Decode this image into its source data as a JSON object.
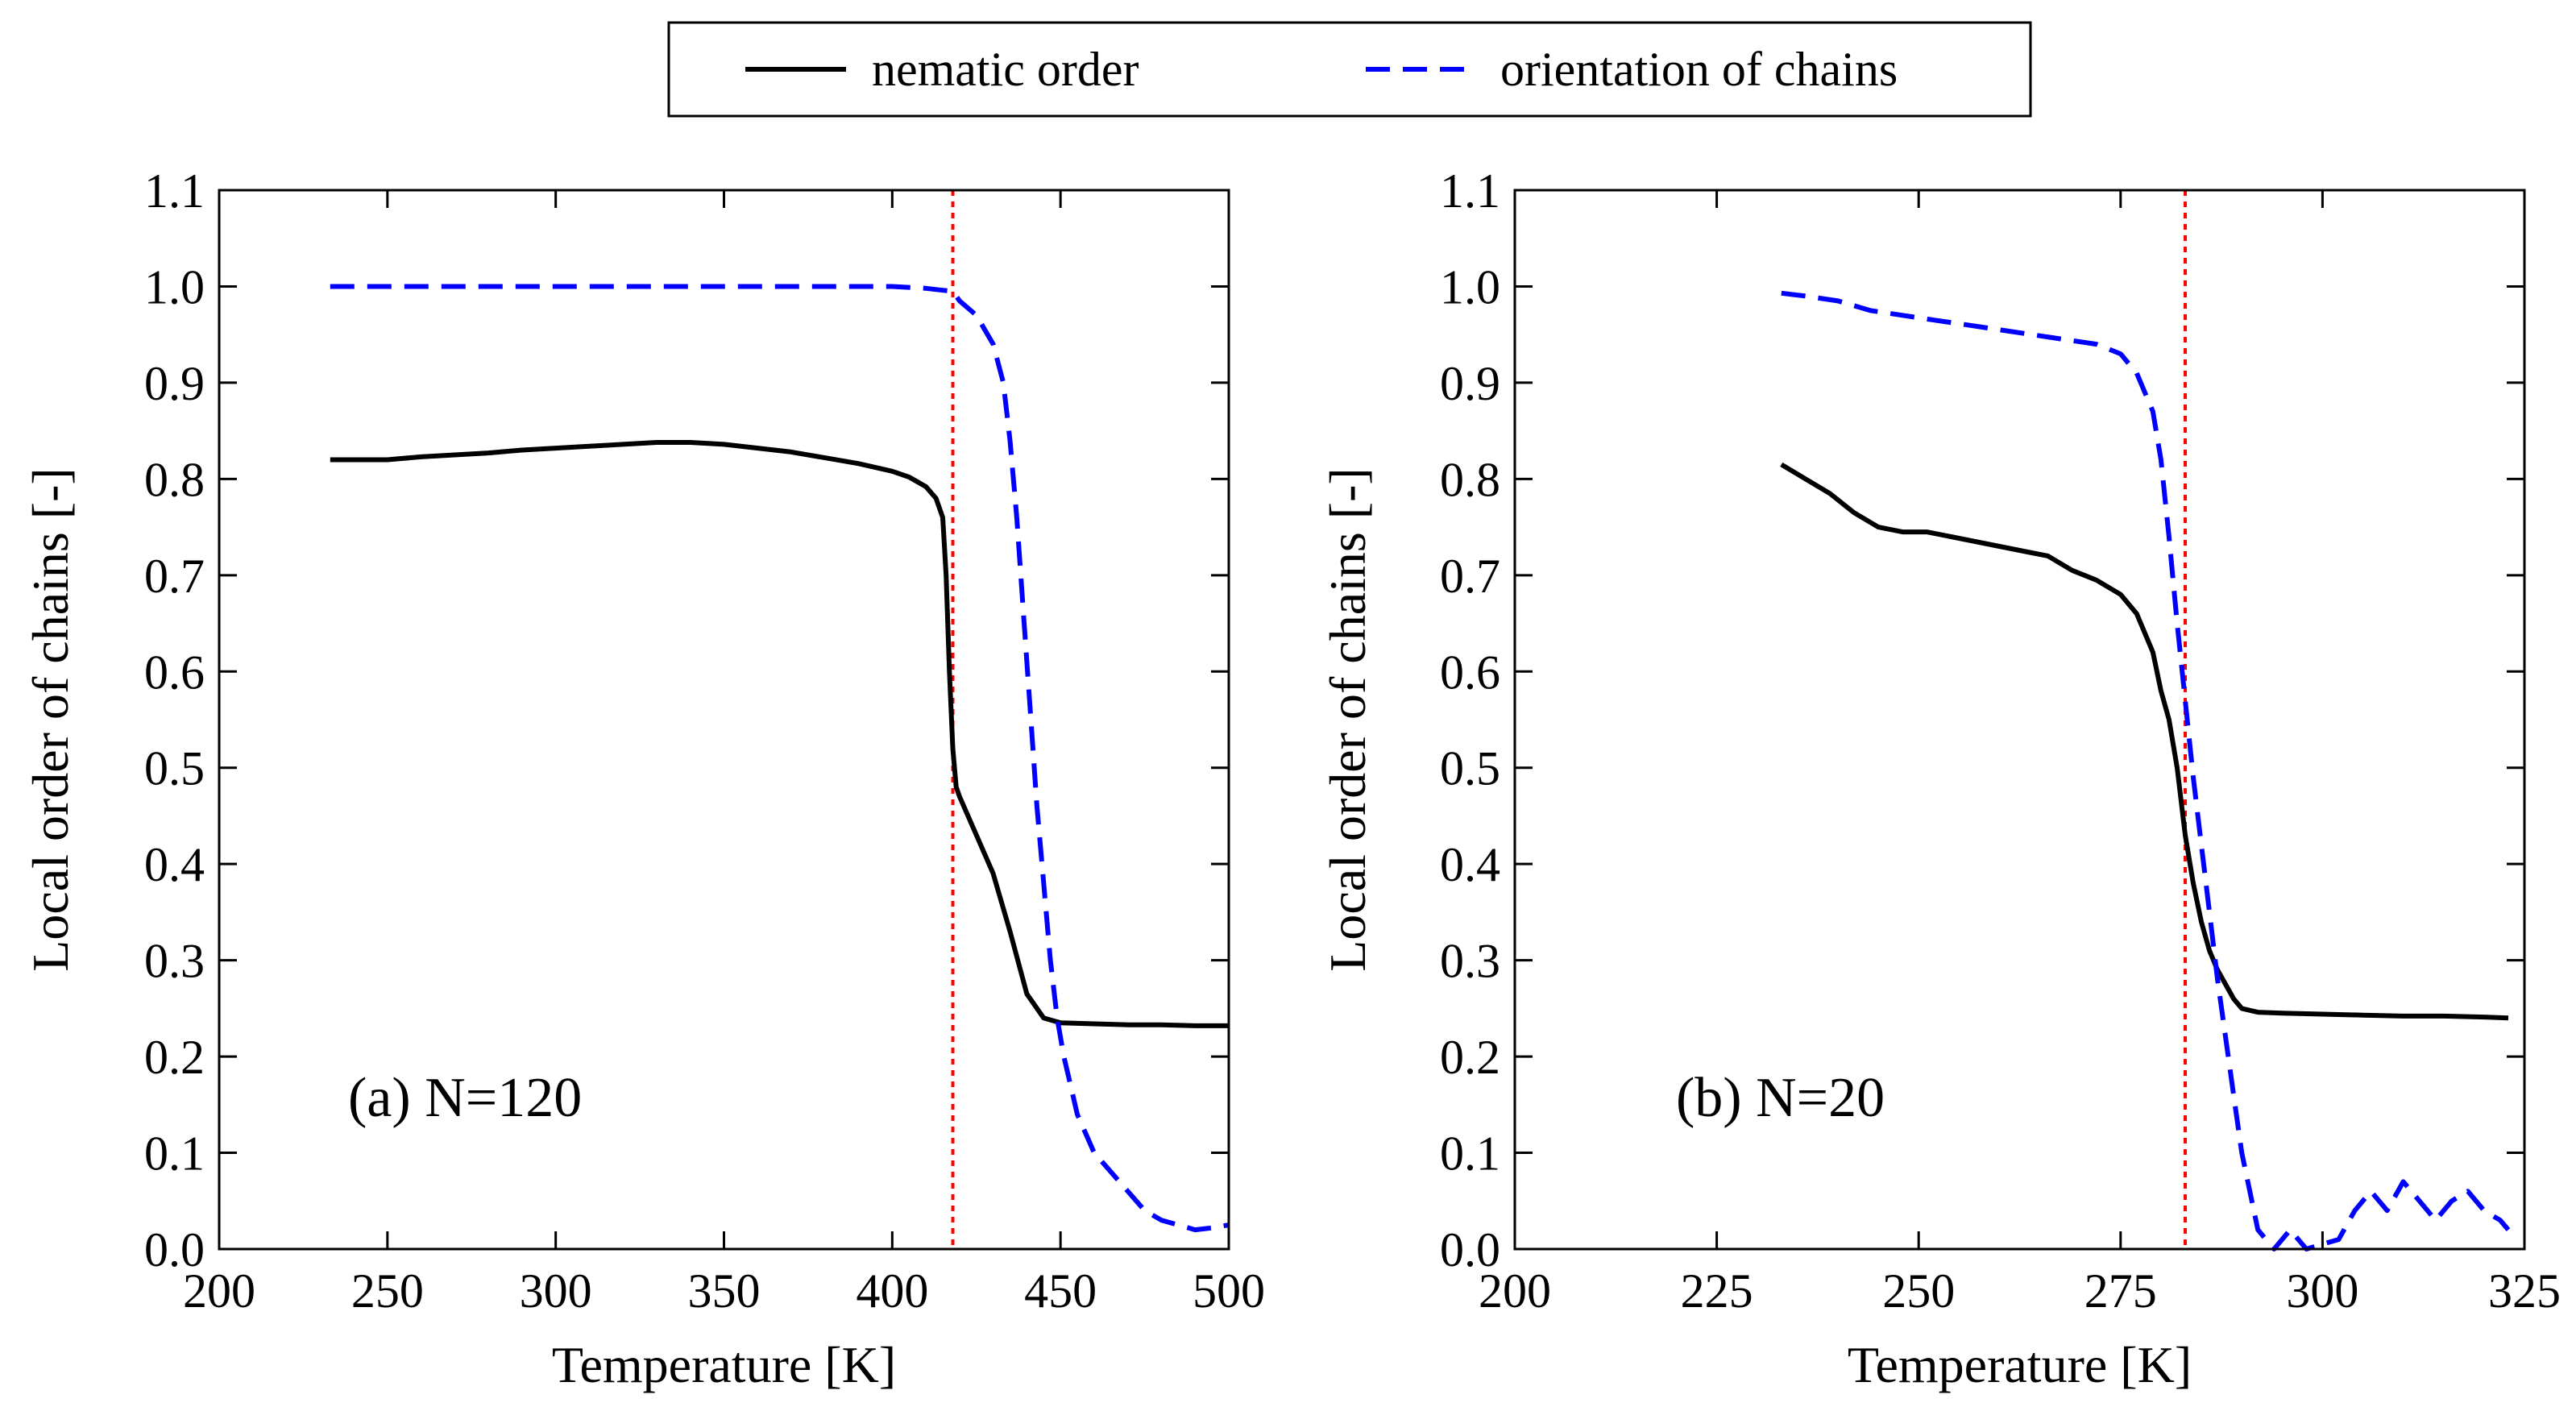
{
  "legend": {
    "entries": [
      {
        "label": "nematic order",
        "color": "#000000",
        "style": "solid"
      },
      {
        "label": "orientation of chains",
        "color": "#0000ff",
        "style": "dashed"
      }
    ]
  },
  "colors": {
    "nematic": "#000000",
    "orientation": "#0000ff",
    "transition": "#ff0000"
  },
  "chart_data": [
    {
      "type": "line",
      "panel_label": "(a)  N=120",
      "xlabel": "Temperature [K]",
      "ylabel": "Local order of chains [-]",
      "xlim": [
        200,
        500
      ],
      "ylim": [
        0.0,
        1.1
      ],
      "xticks": [
        "200",
        "250",
        "300",
        "350",
        "400",
        "450",
        "500"
      ],
      "yticks": [
        "0.0",
        "0.1",
        "0.2",
        "0.3",
        "0.4",
        "0.5",
        "0.6",
        "0.7",
        "0.8",
        "0.9",
        "1.0",
        "1.1"
      ],
      "transition_x": 418,
      "series": [
        {
          "name": "nematic order",
          "x": [
            233,
            240,
            250,
            260,
            270,
            280,
            290,
            300,
            310,
            320,
            330,
            340,
            350,
            360,
            370,
            380,
            390,
            400,
            405,
            410,
            413,
            415,
            416,
            417,
            418,
            419,
            420,
            425,
            430,
            435,
            440,
            445,
            450,
            460,
            470,
            480,
            490,
            500
          ],
          "y": [
            0.82,
            0.82,
            0.82,
            0.823,
            0.825,
            0.827,
            0.83,
            0.832,
            0.834,
            0.836,
            0.838,
            0.838,
            0.836,
            0.832,
            0.828,
            0.822,
            0.816,
            0.808,
            0.802,
            0.792,
            0.78,
            0.76,
            0.7,
            0.6,
            0.52,
            0.48,
            0.47,
            0.43,
            0.39,
            0.33,
            0.265,
            0.24,
            0.235,
            0.234,
            0.233,
            0.233,
            0.232,
            0.232
          ]
        },
        {
          "name": "orientation of chains",
          "x": [
            233,
            250,
            300,
            350,
            380,
            400,
            410,
            415,
            418,
            420,
            425,
            430,
            433,
            435,
            437,
            439,
            441,
            443,
            445,
            447,
            449,
            451,
            453,
            455,
            460,
            465,
            470,
            475,
            480,
            485,
            490,
            495,
            500
          ],
          "y": [
            1.0,
            1.0,
            1.0,
            1.0,
            1.0,
            1.0,
            0.998,
            0.996,
            0.995,
            0.985,
            0.97,
            0.94,
            0.9,
            0.84,
            0.76,
            0.66,
            0.56,
            0.46,
            0.38,
            0.3,
            0.24,
            0.2,
            0.17,
            0.14,
            0.1,
            0.08,
            0.06,
            0.04,
            0.03,
            0.025,
            0.02,
            0.022,
            0.025
          ]
        }
      ]
    },
    {
      "type": "line",
      "panel_label": "(b)  N=20",
      "xlabel": "Temperature [K]",
      "ylabel": "Local order of chains [-]",
      "xlim": [
        200,
        325
      ],
      "ylim": [
        0.0,
        1.1
      ],
      "xticks": [
        "200",
        "225",
        "250",
        "275",
        "300",
        "325"
      ],
      "yticks": [
        "0.0",
        "0.1",
        "0.2",
        "0.3",
        "0.4",
        "0.5",
        "0.6",
        "0.7",
        "0.8",
        "0.9",
        "1.0",
        "1.1"
      ],
      "transition_x": 283,
      "series": [
        {
          "name": "nematic order",
          "x": [
            233,
            236,
            239,
            242,
            245,
            248,
            251,
            254,
            257,
            260,
            263,
            266,
            269,
            272,
            275,
            277,
            279,
            280,
            281,
            282,
            283,
            284,
            285,
            286,
            287,
            288,
            289,
            290,
            292,
            295,
            300,
            305,
            310,
            315,
            320,
            323
          ],
          "y": [
            0.815,
            0.8,
            0.785,
            0.765,
            0.75,
            0.745,
            0.745,
            0.74,
            0.735,
            0.73,
            0.725,
            0.72,
            0.705,
            0.695,
            0.68,
            0.66,
            0.62,
            0.58,
            0.55,
            0.5,
            0.43,
            0.38,
            0.34,
            0.31,
            0.29,
            0.275,
            0.26,
            0.25,
            0.246,
            0.245,
            0.244,
            0.243,
            0.242,
            0.242,
            0.241,
            0.24
          ]
        },
        {
          "name": "orientation of chains",
          "x": [
            233,
            236,
            240,
            244,
            248,
            252,
            256,
            260,
            264,
            268,
            272,
            275,
            277,
            279,
            280,
            281,
            282,
            283,
            284,
            285,
            286,
            287,
            288,
            289,
            290,
            291,
            292,
            294,
            296,
            298,
            300,
            302,
            304,
            306,
            308,
            310,
            312,
            314,
            316,
            318,
            320,
            322,
            323
          ],
          "y": [
            0.993,
            0.99,
            0.985,
            0.975,
            0.97,
            0.965,
            0.96,
            0.955,
            0.95,
            0.945,
            0.94,
            0.93,
            0.91,
            0.87,
            0.82,
            0.74,
            0.65,
            0.57,
            0.49,
            0.42,
            0.35,
            0.28,
            0.22,
            0.16,
            0.1,
            0.06,
            0.02,
            0.0,
            0.02,
            0.0,
            0.005,
            0.01,
            0.04,
            0.06,
            0.04,
            0.07,
            0.05,
            0.03,
            0.05,
            0.06,
            0.04,
            0.03,
            0.02
          ]
        }
      ]
    }
  ]
}
